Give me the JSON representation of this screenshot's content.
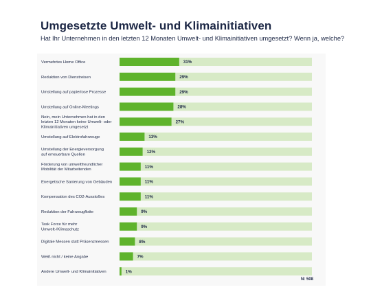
{
  "title": "Umgesetzte Umwelt- und Klimainitiativen",
  "subtitle": "Hat Ihr Unternehmen in den letzten 12 Monaten Umwelt- und Klimainitiativen umgesetzt? Wenn ja, welche?",
  "footnote": "N: 508",
  "colors": {
    "bar": "#5fb32c",
    "track": "#d7eac6",
    "panel": "#f8f8f8",
    "text": "#1c2745"
  },
  "chart_data": {
    "type": "bar",
    "orientation": "horizontal",
    "title": "Umgesetzte Umwelt- und Klimainitiativen",
    "xlim": [
      0,
      100
    ],
    "unit": "%",
    "categories": [
      [
        "Vermehrtes Home Office"
      ],
      [
        "Reduktion von Dienstreisen"
      ],
      [
        "Umstellung auf papierlose Prozesse"
      ],
      [
        "Umstellung auf Online-Meetings"
      ],
      [
        "Nein, mein Unternehmen hat in den",
        "letzten 12 Monaten keine Umwelt- oder",
        "Klimainitiativen umgesetzt"
      ],
      [
        "Umstellung auf Elektrofahrzeuge"
      ],
      [
        "Umstellung der Energieversorgung",
        "auf erneuerbare Quellen"
      ],
      [
        "Förderung von umweltfreundlicher",
        "Mobilität der Mitarbeitenden"
      ],
      [
        "Energetische Sanierung von Gebäuden"
      ],
      [
        "Kompensation des CO2-Ausstoßes"
      ],
      [
        "Reduktion der Fahrzeugflotte"
      ],
      [
        "Task Force für mehr",
        "Umwelt-/Klimaschutz"
      ],
      [
        "Digitale Messen statt Präsenzmessen"
      ],
      [
        "Weiß nicht / keine Angabe"
      ],
      [
        "Andere Umwelt- und Klimainitiativen"
      ]
    ],
    "values": [
      31,
      29,
      29,
      28,
      27,
      13,
      12,
      11,
      11,
      11,
      9,
      9,
      8,
      7,
      1
    ],
    "value_labels": [
      "31%",
      "29%",
      "29%",
      "28%",
      "27%",
      "13%",
      "12%",
      "11%",
      "11%",
      "11%",
      "9%",
      "9%",
      "8%",
      "7%",
      "1%"
    ]
  }
}
